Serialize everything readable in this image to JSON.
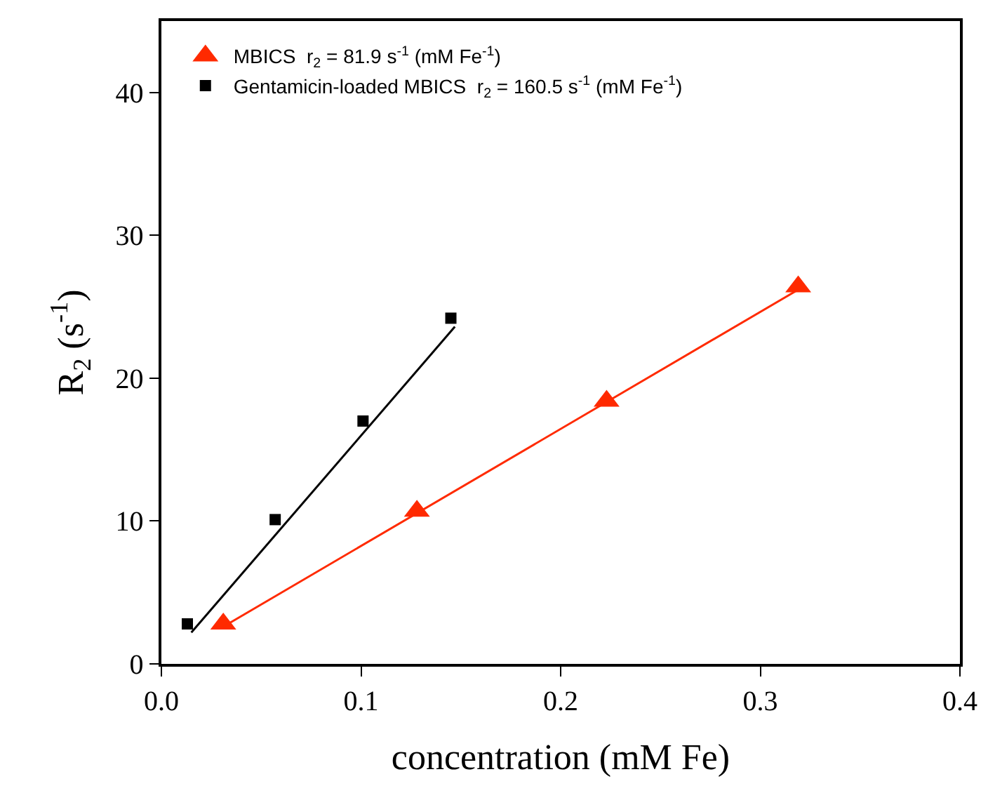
{
  "chart_data": {
    "type": "scatter",
    "xlabel": "concentration (mM Fe)",
    "ylabel": "R$_{2}$ (s$^{-1}$)",
    "xlim": [
      0,
      0.4
    ],
    "xticks": [
      {
        "value": 0,
        "label": "0.0"
      },
      0.1,
      0.2,
      0.3,
      0.4
    ],
    "ylim": [
      0,
      45
    ],
    "yticks": [
      0,
      10,
      20,
      30,
      40
    ],
    "grid": false,
    "legend": "top left",
    "series": [
      {
        "name": "MBICS  r$_{2}$ = 81.9 s$^{-1}$ (mM Fe$^{-1}$)",
        "color": "#ff2a00",
        "marker": "triangle",
        "x": [
          0.031,
          0.128,
          0.223,
          0.319
        ],
        "values": [
          2.8,
          10.7,
          18.4,
          26.4
        ]
      },
      {
        "name": "Gentamicin-loaded MBICS  r$_{2}$ = 160.5 s$^{-1}$ (mM Fe$^{-1}$)",
        "color": "#000000",
        "marker": "square",
        "x": [
          0.013,
          0.057,
          0.101,
          0.145
        ],
        "values": [
          2.8,
          10.1,
          17.0,
          24.2
        ]
      },
      {
        "type": "line",
        "color": "#ff2a00",
        "marker": "none",
        "line_style": "solid",
        "x": [
          0.031,
          0.319
        ],
        "values": [
          2.6,
          26.2
        ]
      },
      {
        "type": "line",
        "color": "#000000",
        "marker": "none",
        "line_style": "solid",
        "x": [
          0.015,
          0.147
        ],
        "values": [
          2.2,
          23.6
        ]
      }
    ]
  }
}
